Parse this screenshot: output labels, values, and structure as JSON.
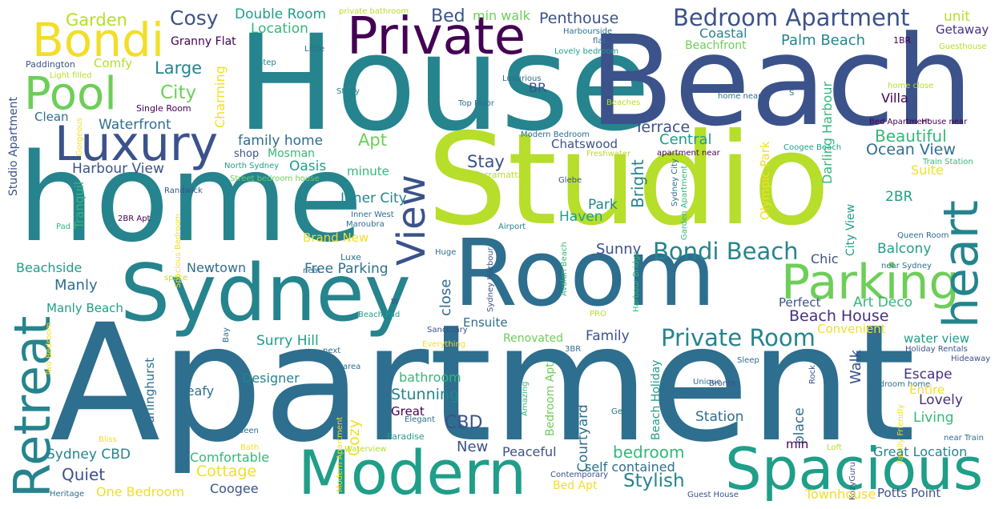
{
  "palette": {
    "yellow": "#f2de28",
    "lime": "#b6de2b",
    "green": "#6dce58",
    "emerald": "#35b779",
    "teal": "#1f9e89",
    "cyan": "#25848e",
    "steel": "#2e6e8e",
    "blue": "#3b528b",
    "indigo": "#472f7d",
    "purple": "#440154"
  },
  "words": [
    "Apartment",
    "House",
    "Beach",
    "Studio",
    "home",
    "Room",
    "Sydney",
    "Modern",
    "Spacious",
    "Private",
    "Bondi",
    "Luxury",
    "Pool",
    "Parking",
    "heart",
    "Retreat",
    "View",
    "Bondi Beach",
    "Private Room",
    "Bedroom Apartment",
    "Cosy",
    "Garden",
    "Granny Flat",
    "Double Room",
    "Location",
    "Penthouse",
    "Bed",
    "min walk",
    "private bathroom",
    "Harbourside",
    "flat",
    "Coastal",
    "Palm Beach",
    "Getaway",
    "unit",
    "1BR",
    "Guesthouse",
    "Beachfront",
    "Lovely bedroom",
    "Little",
    "Step",
    "Paddington",
    "Comfy",
    "Large",
    "Light filled",
    "City",
    "Charming",
    "Single Room",
    "Study",
    "Luxurious",
    "BR",
    "Top Floor",
    "Beaches",
    "home near",
    "S",
    "home close",
    "Villa",
    "Clean",
    "Waterfront",
    "Terrace",
    "Central",
    "Darling Harbour",
    "Bed Apartment",
    "House near",
    "Gorgeous",
    "Studio Apartment",
    "family home",
    "Apt",
    "Modern Bedroom",
    "Chatswood",
    "Beautiful",
    "Ocean View",
    "Harbour View",
    "shop",
    "Mosman",
    "Oasis",
    "minute",
    "North Sydney",
    "Freshwater",
    "apartment near",
    "Coogee Beach",
    "Stay",
    "Parramatta",
    "Street bedroom house",
    "Randwick",
    "Tranquil",
    "Inner City",
    "Bright",
    "Park",
    "Glebe",
    "Olympic Park",
    "Sydney City",
    "Garden Apartment",
    "Suite",
    "Train Station",
    "2BR",
    "Haven",
    "Inner West",
    "Maroubra",
    "Pad",
    "2BR Apt",
    "Airport",
    "Brand New",
    "Luxe",
    "Huge",
    "Spacious Bedroom",
    "space",
    "Newtown",
    "Beachside",
    "Free Parking",
    "Sunny",
    "Chic",
    "Balcony",
    "City View",
    "Queen Room",
    "near Sydney",
    "near",
    "Manly",
    "Avalon Beach",
    "Sydney Harbour",
    "Harbour Bridge",
    "close",
    "W",
    "Perfect",
    "Art Deco",
    "Beach House",
    "Manly Beach",
    "Beach Pad",
    "Ensuite",
    "PRO",
    "Convenient",
    "Sanctuary",
    "Bay",
    "Surry Hill",
    "Family",
    "Renovated",
    "water view",
    "Two Bedroom",
    "next",
    "Everything",
    "3BR",
    "Holiday Rentals",
    "Hideaway",
    "Darlinghurst",
    "Designer",
    "area",
    "bathroom",
    "Sleep",
    "Walk",
    "Escape",
    "Leafy",
    "Amazing",
    "Beach Holiday",
    "Unique",
    "Stunning",
    "Bedroom Apt",
    "Bronte",
    "Rock",
    "bedroom home",
    "Lovely",
    "Great",
    "Elegant",
    "Cozy",
    "Courtyard",
    "Entire",
    "CBD",
    "Station",
    "place",
    "Family Friendly",
    "Living",
    "Gem",
    "Paradise",
    "Queen",
    "Bliss",
    "New",
    "min",
    "Loft",
    "near Train",
    "Bath",
    "Sydney CBD",
    "Peaceful",
    "bedroom",
    "Great Location",
    "Modern Apartment",
    "Waterview",
    "Comfortable",
    "self contained",
    "Quiet",
    "Cottage",
    "Stylish",
    "Contemporary",
    "Bed Apt",
    "KozyGuru",
    "One Bedroom",
    "Coogee",
    "Heritage",
    "Guest House",
    "Townhouse",
    "Potts Point"
  ]
}
